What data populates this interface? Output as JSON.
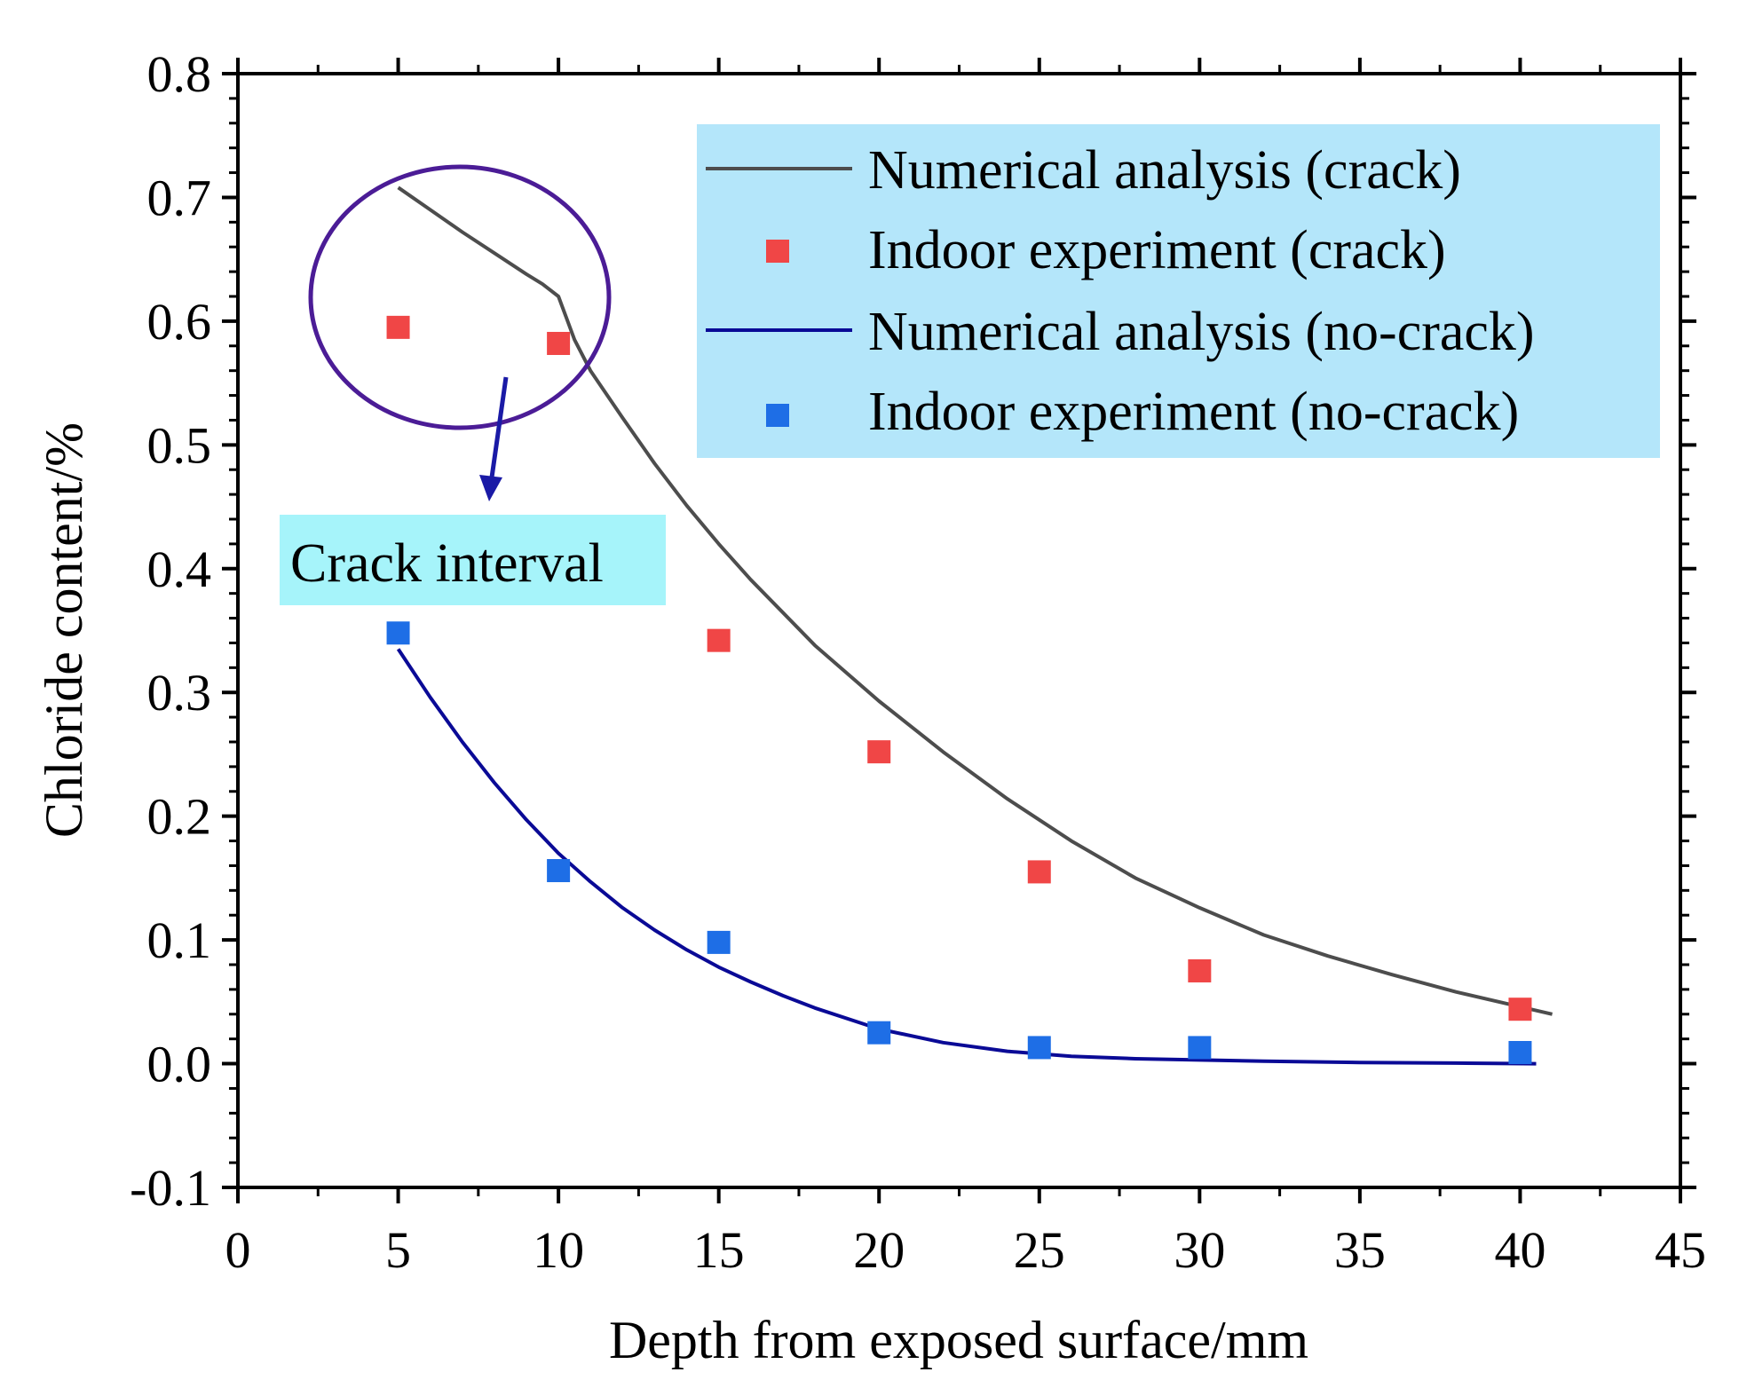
{
  "chart_data": {
    "type": "scatter",
    "title": "",
    "xlabel": "Depth from exposed surface/mm",
    "ylabel": "Chloride content/%",
    "xlim": [
      0,
      45
    ],
    "ylim": [
      -0.1,
      0.8
    ],
    "x_ticks": [
      0,
      5,
      10,
      15,
      20,
      25,
      30,
      35,
      40,
      45
    ],
    "x_tick_labels": [
      "0",
      "5",
      "10",
      "15",
      "20",
      "25",
      "30",
      "35",
      "40",
      "45"
    ],
    "y_ticks": [
      -0.1,
      0.0,
      0.1,
      0.2,
      0.3,
      0.4,
      0.5,
      0.6,
      0.7,
      0.8
    ],
    "y_tick_labels": [
      "-0.1",
      "0.0",
      "0.1",
      "0.2",
      "0.3",
      "0.4",
      "0.5",
      "0.6",
      "0.7",
      "0.8"
    ],
    "grid": false,
    "legend_position": "top-right",
    "series": [
      {
        "name": "Numerical analysis (crack)",
        "kind": "line",
        "color": "#4d4d4d",
        "x": [
          5,
          6,
          7,
          8,
          9,
          9.5,
          10,
          10.5,
          11,
          12,
          13,
          14,
          15,
          16,
          18,
          20,
          22,
          24,
          26,
          28,
          30,
          32,
          34,
          36,
          38,
          40,
          41
        ],
        "y": [
          0.708,
          0.69,
          0.672,
          0.655,
          0.638,
          0.63,
          0.62,
          0.585,
          0.56,
          0.522,
          0.485,
          0.451,
          0.42,
          0.391,
          0.338,
          0.293,
          0.252,
          0.214,
          0.18,
          0.15,
          0.126,
          0.104,
          0.087,
          0.072,
          0.058,
          0.046,
          0.04
        ]
      },
      {
        "name": "Indoor experiment (crack)",
        "kind": "marker",
        "color": "#f04646",
        "x": [
          5,
          10,
          15,
          20,
          25,
          30,
          40
        ],
        "y": [
          0.595,
          0.582,
          0.342,
          0.252,
          0.155,
          0.075,
          0.044
        ]
      },
      {
        "name": "Numerical analysis (no-crack)",
        "kind": "line",
        "color": "#0a0a96",
        "x": [
          5,
          6,
          7,
          8,
          9,
          10,
          11,
          12,
          13,
          14,
          15,
          16,
          17,
          18,
          20,
          22,
          24,
          26,
          28,
          30,
          32,
          35,
          38,
          40.5
        ],
        "y": [
          0.335,
          0.296,
          0.26,
          0.227,
          0.197,
          0.17,
          0.147,
          0.126,
          0.108,
          0.092,
          0.078,
          0.066,
          0.055,
          0.045,
          0.028,
          0.017,
          0.01,
          0.006,
          0.004,
          0.003,
          0.002,
          0.001,
          0.0005,
          0.0
        ]
      },
      {
        "name": "Indoor experiment (no-crack)",
        "kind": "marker",
        "color": "#1e6ee6",
        "x": [
          5,
          10,
          15,
          20,
          25,
          30,
          40
        ],
        "y": [
          0.348,
          0.156,
          0.098,
          0.025,
          0.013,
          0.013,
          0.009
        ]
      }
    ],
    "annotations": [
      {
        "text": "Crack interval",
        "background": "#a6f4fa",
        "ellipse_color": "#4b1c96",
        "arrow_color": "#1a1aa6"
      }
    ],
    "legend_background": "#b4e6fa"
  }
}
